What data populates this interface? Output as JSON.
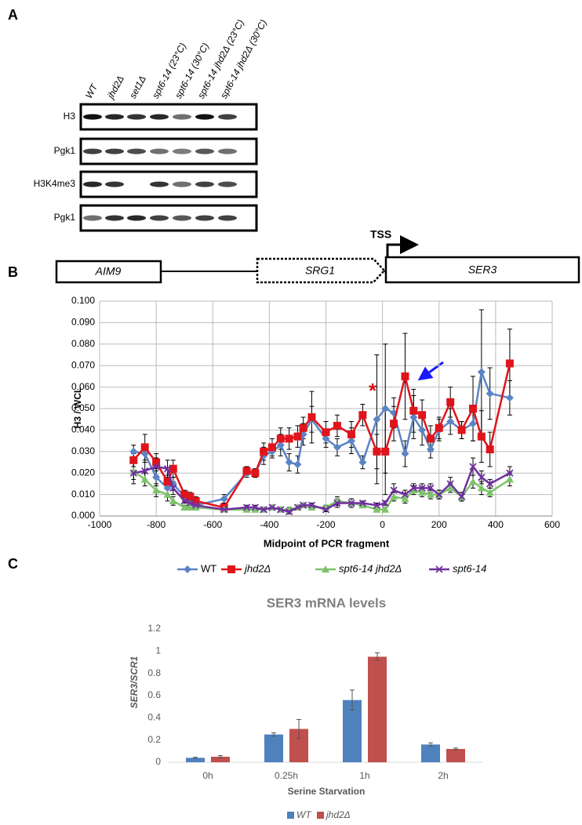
{
  "panel_labels": [
    "A",
    "B",
    "C"
  ],
  "blot": {
    "lanes": [
      "WT",
      "jhd2Δ",
      "set1Δ",
      "spt6-14 (23°C)",
      "spt6-14 (30°C)",
      "spt6-14 jhd2Δ (23°C)",
      "spt6-14 jhd2Δ (30°C)"
    ],
    "rows": [
      "H3",
      "Pgk1",
      "H3K4me3",
      "Pgk1"
    ]
  },
  "gene_map": {
    "genes": [
      "AIM9",
      "SRG1",
      "SER3"
    ],
    "tss": "TSS"
  },
  "chart_data": [
    {
      "type": "line",
      "ylabel": "H3 / WCL",
      "xlabel": "Midpoint of PCR fragment",
      "grid": true,
      "annotations": [
        "*"
      ],
      "x": [
        -880,
        -840,
        -800,
        -760,
        -740,
        -700,
        -680,
        -660,
        -560,
        -480,
        -450,
        -420,
        -390,
        -360,
        -330,
        -300,
        -280,
        -250,
        -200,
        -160,
        -110,
        -70,
        -20,
        10,
        40,
        80,
        110,
        140,
        170,
        200,
        240,
        280,
        320,
        350,
        380,
        450
      ],
      "series": [
        {
          "name": "WT",
          "color": "#5b84c4",
          "marker": "diamond",
          "values": [
            0.03,
            0.029,
            0.018,
            0.013,
            0.015,
            0.009,
            0.007,
            0.005,
            0.008,
            0.02,
            0.02,
            0.028,
            0.03,
            0.033,
            0.025,
            0.024,
            0.038,
            0.045,
            0.036,
            0.032,
            0.035,
            0.025,
            0.045,
            0.05,
            0.048,
            0.029,
            0.046,
            0.04,
            0.031,
            0.04,
            0.044,
            0.04,
            0.043,
            0.067,
            0.057,
            0.055
          ],
          "errors": [
            0.003,
            0.004,
            0.004,
            0.003,
            0.003,
            0.002,
            0.002,
            0.002,
            0.002,
            0.002,
            0.002,
            0.004,
            0.003,
            0.005,
            0.004,
            0.004,
            0.005,
            0.006,
            0.004,
            0.004,
            0.006,
            0.003,
            0.03,
            0.03,
            0.007,
            0.006,
            0.01,
            0.007,
            0.004,
            0.005,
            0.006,
            0.004,
            0.008,
            0.029,
            0.012,
            0.008
          ]
        },
        {
          "name": "jhd2Δ",
          "color": "#e0141b",
          "marker": "square",
          "values": [
            0.026,
            0.032,
            0.025,
            0.016,
            0.022,
            0.01,
            0.009,
            0.007,
            0.004,
            0.021,
            0.02,
            0.03,
            0.032,
            0.036,
            0.036,
            0.037,
            0.041,
            0.046,
            0.039,
            0.042,
            0.038,
            0.047,
            0.03,
            0.03,
            0.043,
            0.065,
            0.049,
            0.047,
            0.036,
            0.041,
            0.053,
            0.04,
            0.05,
            0.037,
            0.031,
            0.071
          ],
          "errors": [
            0.003,
            0.006,
            0.004,
            0.003,
            0.004,
            0.002,
            0.002,
            0.002,
            0.002,
            0.002,
            0.002,
            0.004,
            0.004,
            0.005,
            0.005,
            0.005,
            0.005,
            0.012,
            0.005,
            0.005,
            0.006,
            0.005,
            0.008,
            0.02,
            0.008,
            0.02,
            0.01,
            0.007,
            0.006,
            0.005,
            0.007,
            0.004,
            0.015,
            0.012,
            0.008,
            0.016
          ]
        },
        {
          "name": "spt6-14 jhd2Δ",
          "color": "#7dc36a",
          "marker": "triangle",
          "values": [
            0.021,
            0.017,
            0.012,
            0.01,
            0.007,
            0.004,
            0.004,
            0.004,
            0.003,
            0.003,
            0.003,
            0.003,
            0.004,
            0.003,
            0.003,
            0.004,
            0.005,
            0.004,
            0.004,
            0.007,
            0.006,
            0.005,
            0.003,
            0.003,
            0.009,
            0.008,
            0.012,
            0.011,
            0.01,
            0.01,
            0.013,
            0.009,
            0.016,
            0.013,
            0.011,
            0.017
          ],
          "errors": [
            0.004,
            0.003,
            0.003,
            0.003,
            0.002,
            0.001,
            0.001,
            0.001,
            0.001,
            0.001,
            0.001,
            0.001,
            0.001,
            0.001,
            0.001,
            0.001,
            0.001,
            0.001,
            0.001,
            0.002,
            0.002,
            0.001,
            0.001,
            0.001,
            0.002,
            0.002,
            0.002,
            0.002,
            0.002,
            0.002,
            0.002,
            0.002,
            0.003,
            0.003,
            0.002,
            0.003
          ]
        },
        {
          "name": "spt6-14",
          "color": "#7030a0",
          "marker": "x",
          "values": [
            0.02,
            0.021,
            0.023,
            0.022,
            0.013,
            0.007,
            0.006,
            0.005,
            0.003,
            0.004,
            0.004,
            0.003,
            0.004,
            0.003,
            0.002,
            0.004,
            0.005,
            0.005,
            0.003,
            0.006,
            0.006,
            0.006,
            0.005,
            0.006,
            0.012,
            0.01,
            0.013,
            0.013,
            0.013,
            0.01,
            0.015,
            0.009,
            0.023,
            0.018,
            0.015,
            0.02
          ],
          "errors": [
            0.005,
            0.004,
            0.004,
            0.004,
            0.003,
            0.001,
            0.001,
            0.001,
            0.001,
            0.001,
            0.001,
            0.001,
            0.001,
            0.001,
            0.001,
            0.001,
            0.001,
            0.001,
            0.001,
            0.002,
            0.002,
            0.001,
            0.001,
            0.001,
            0.003,
            0.002,
            0.002,
            0.002,
            0.002,
            0.002,
            0.003,
            0.002,
            0.004,
            0.003,
            0.002,
            0.003
          ]
        }
      ],
      "xlim": [
        -1000,
        600
      ],
      "xticks": [
        -1000,
        -800,
        -600,
        -400,
        -200,
        0,
        200,
        400,
        600
      ],
      "ylim": [
        0,
        0.1
      ],
      "yticks": [
        {
          "value": 0,
          "label": "0.000"
        },
        {
          "value": 0.01,
          "label": "0.010"
        },
        {
          "value": 0.02,
          "label": "0.020"
        },
        {
          "value": 0.03,
          "label": "0.030"
        },
        {
          "value": 0.04,
          "label": "0.040"
        },
        {
          "value": 0.05,
          "label": "0.050"
        },
        {
          "value": 0.06,
          "label": "0.060"
        },
        {
          "value": 0.07,
          "label": "0.070"
        },
        {
          "value": 0.08,
          "label": "0.080"
        },
        {
          "value": 0.09,
          "label": "0.090"
        },
        {
          "value": 0.1,
          "label": "0.100"
        }
      ]
    },
    {
      "type": "bar",
      "title": "SER3 mRNA levels",
      "ylabel": "SER3/SCR1",
      "xlabel": "Serine Starvation",
      "categories": [
        "0h",
        "0.25h",
        "1h",
        "2h"
      ],
      "series": [
        {
          "name": "WT",
          "color": "#4f81bd",
          "values": [
            0.04,
            0.25,
            0.56,
            0.16
          ],
          "errors": [
            0.005,
            0.015,
            0.09,
            0.015
          ]
        },
        {
          "name": "jhd2Δ",
          "color": "#c0504d",
          "values": [
            0.05,
            0.3,
            0.95,
            0.12
          ],
          "errors": [
            0.01,
            0.085,
            0.035,
            0.008
          ]
        }
      ],
      "ylim": [
        0,
        1.2
      ],
      "yticks": [
        0,
        0.2,
        0.4,
        0.6,
        0.8,
        1,
        1.2
      ]
    }
  ]
}
